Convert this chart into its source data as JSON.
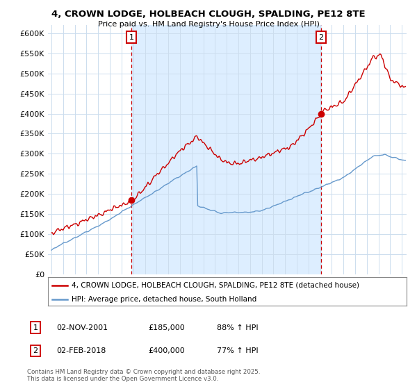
{
  "title": "4, CROWN LODGE, HOLBEACH CLOUGH, SPALDING, PE12 8TE",
  "subtitle": "Price paid vs. HM Land Registry's House Price Index (HPI)",
  "ytick_values": [
    0,
    50000,
    100000,
    150000,
    200000,
    250000,
    300000,
    350000,
    400000,
    450000,
    500000,
    550000,
    600000
  ],
  "ylim": [
    0,
    620000
  ],
  "xlim_start": 1994.7,
  "xlim_end": 2025.4,
  "sale1_x": 2001.84,
  "sale1_y": 185000,
  "sale1_label": "1",
  "sale2_x": 2018.08,
  "sale2_y": 400000,
  "sale2_label": "2",
  "legend_line1": "4, CROWN LODGE, HOLBEACH CLOUGH, SPALDING, PE12 8TE (detached house)",
  "legend_line2": "HPI: Average price, detached house, South Holland",
  "annotation1_date": "02-NOV-2001",
  "annotation1_price": "£185,000",
  "annotation1_hpi": "88% ↑ HPI",
  "annotation2_date": "02-FEB-2018",
  "annotation2_price": "£400,000",
  "annotation2_hpi": "77% ↑ HPI",
  "footer": "Contains HM Land Registry data © Crown copyright and database right 2025.\nThis data is licensed under the Open Government Licence v3.0.",
  "line_color_red": "#cc0000",
  "line_color_blue": "#6699cc",
  "fill_color": "#ddeeff",
  "background_color": "#ffffff",
  "grid_color": "#ccddee"
}
